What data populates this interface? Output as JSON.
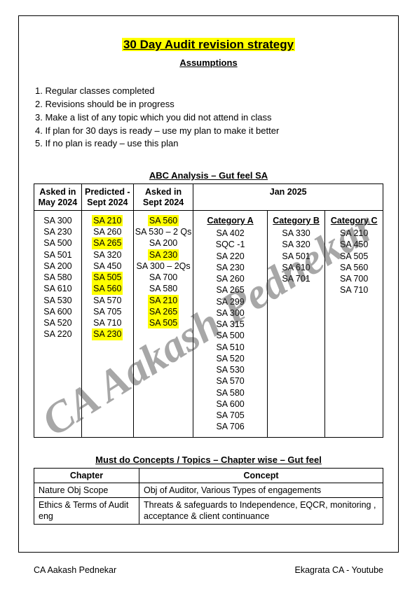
{
  "title": "30 Day Audit revision strategy",
  "subtitle": "Assumptions",
  "assumptions": [
    "1. Regular classes completed",
    "2. Revisions should be in progress",
    "3. Make a list of any topic which you did not attend in class",
    "4. If plan for 30 days is ready – use my plan to make it better",
    "5. If no plan is ready – use this plan"
  ],
  "abc_heading": "ABC Analysis – Gut feel SA",
  "abc_headers": {
    "c1": "Asked in May 2024",
    "c2": "Predicted - Sept 2024",
    "c3": "Asked in Sept 2024",
    "c4": "Jan 2025"
  },
  "col1": [
    {
      "t": "SA 300"
    },
    {
      "t": "SA 230"
    },
    {
      "t": "SA 500"
    },
    {
      "t": "SA 501"
    },
    {
      "t": "SA 200"
    },
    {
      "t": "SA 580"
    },
    {
      "t": "SA 610"
    },
    {
      "t": "SA 530"
    },
    {
      "t": "SA 600"
    },
    {
      "t": "SA 520"
    },
    {
      "t": "SA 220"
    }
  ],
  "col2": [
    {
      "t": "SA 210",
      "hl": true
    },
    {
      "t": "SA 260"
    },
    {
      "t": "SA 265",
      "hl": true
    },
    {
      "t": "SA 320"
    },
    {
      "t": "SA 450"
    },
    {
      "t": "SA 505",
      "hl": true
    },
    {
      "t": "SA 560",
      "hl": true
    },
    {
      "t": "SA 570"
    },
    {
      "t": "SA 705"
    },
    {
      "t": "SA 710"
    },
    {
      "t": "SA 230",
      "hl": true
    }
  ],
  "col3": [
    {
      "t": "SA 560",
      "hl": true
    },
    {
      "t": "SA 530 – 2 Qs"
    },
    {
      "t": "SA 200"
    },
    {
      "t": "SA 230",
      "hl": true
    },
    {
      "t": "SA 300 – 2Qs"
    },
    {
      "t": "SA 700"
    },
    {
      "t": "SA 580"
    },
    {
      "t": "SA 210",
      "hl": true
    },
    {
      "t": "SA 265",
      "hl": true
    },
    {
      "t": "SA 505",
      "hl": true
    }
  ],
  "jan2025": {
    "catA": {
      "head": "Category A",
      "items": [
        "SA 402",
        "SQC -1",
        "SA 220",
        "SA 230",
        "SA 260",
        "SA 265",
        "SA 299",
        "SA 300",
        "SA 315",
        "SA 500",
        "SA 510",
        "SA 520",
        "SA 530",
        "SA 570",
        "SA 580",
        "SA 600",
        "SA 705",
        "SA 706"
      ]
    },
    "catB": {
      "head": "Category B",
      "items": [
        "SA 330",
        "SA 320",
        "SA 501",
        "SA 610",
        "SA 701"
      ]
    },
    "catC": {
      "head": "Category C",
      "items": [
        "SA 210",
        "SA 450",
        "SA 505",
        "SA 560",
        "SA 700",
        "SA 710"
      ]
    }
  },
  "topics_heading": "Must do Concepts / Topics – Chapter wise – Gut feel",
  "topics_headers": {
    "c1": "Chapter",
    "c2": "Concept"
  },
  "topics_rows": [
    {
      "ch": "Nature Obj Scope",
      "concept": "Obj of Auditor, Various Types of engagements"
    },
    {
      "ch": "Ethics & Terms of Audit eng",
      "concept": "Threats & safeguards to Independence, EQCR, monitoring , acceptance & client continuance"
    }
  ],
  "footer_left": "CA Aakash Pednekar",
  "footer_right": "Ekagrata CA - Youtube",
  "watermark": "CA Aakash Pednekar"
}
